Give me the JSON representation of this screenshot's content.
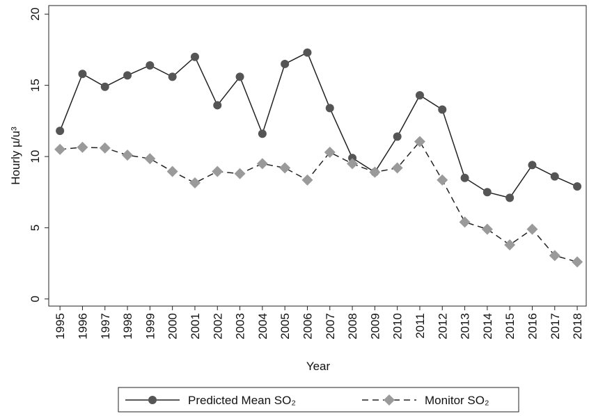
{
  "chart_data": {
    "type": "line",
    "x_label": "Year",
    "y_label": "Hourly µ/u³",
    "x": [
      1995,
      1996,
      1997,
      1998,
      1999,
      2000,
      2001,
      2002,
      2003,
      2004,
      2005,
      2006,
      2007,
      2008,
      2009,
      2010,
      2011,
      2012,
      2013,
      2014,
      2015,
      2016,
      2017,
      2018
    ],
    "xlim": [
      1994.5,
      2018.4
    ],
    "xticks": [
      1995,
      1996,
      1997,
      1998,
      1999,
      2000,
      2001,
      2002,
      2003,
      2004,
      2005,
      2006,
      2007,
      2008,
      2009,
      2010,
      2011,
      2012,
      2013,
      2014,
      2015,
      2016,
      2017,
      2018
    ],
    "ylim": [
      -0.5,
      20.6
    ],
    "yticks": [
      0,
      5,
      10,
      15,
      20
    ],
    "series": [
      {
        "name": "Predicted Mean SO₂",
        "color": "#555555",
        "line_color": "#222222",
        "line_style": "solid",
        "marker": "circle",
        "values": [
          11.8,
          15.8,
          14.9,
          15.7,
          16.4,
          15.6,
          17.0,
          13.6,
          15.6,
          11.6,
          16.5,
          17.3,
          13.4,
          9.9,
          8.9,
          11.4,
          14.3,
          13.3,
          8.5,
          7.5,
          7.1,
          9.4,
          8.6,
          7.9
        ]
      },
      {
        "name": "Monitor SO₂",
        "color": "#9a9a9a",
        "line_color": "#222222",
        "line_style": "dashed",
        "marker": "diamond",
        "values": [
          10.5,
          10.65,
          10.6,
          10.1,
          9.85,
          8.95,
          8.15,
          8.95,
          8.8,
          9.5,
          9.2,
          8.35,
          10.3,
          9.5,
          8.9,
          9.2,
          11.05,
          8.35,
          5.4,
          4.9,
          3.8,
          4.9,
          3.05,
          2.6
        ]
      }
    ],
    "legend": "bottom"
  }
}
